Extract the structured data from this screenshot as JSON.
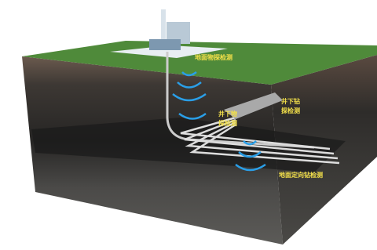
{
  "labels": {
    "surface_geophysical": "地面物探检测",
    "underground_geophysical": [
      "井下物",
      "探检测"
    ],
    "underground_drilling": [
      "井下钻",
      "探检测"
    ],
    "surface_directional_drilling": "地面定向钻检测"
  }
}
